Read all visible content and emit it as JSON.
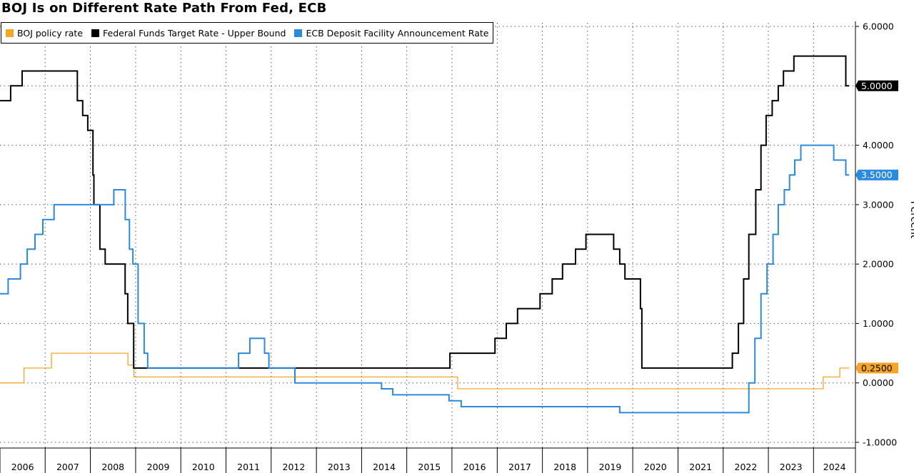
{
  "chart_data": {
    "type": "line",
    "title": "BOJ Is on Different Rate Path From Fed, ECB",
    "ylabel": "Percent",
    "xlabel": "",
    "ylim": [
      -1.0,
      6.0
    ],
    "xlim": [
      "2006-01-01",
      "2024-12-31"
    ],
    "grid": true,
    "legend_position": "top-left",
    "y_ticks": [
      "-1.0000",
      "0.0000",
      "1.0000",
      "2.0000",
      "3.0000",
      "4.0000",
      "5.0000",
      "6.0000"
    ],
    "x_ticks": [
      "2006",
      "2007",
      "2008",
      "2009",
      "2010",
      "2011",
      "2012",
      "2013",
      "2014",
      "2015",
      "2016",
      "2017",
      "2018",
      "2019",
      "2020",
      "2021",
      "2022",
      "2023",
      "2024"
    ],
    "series": [
      {
        "name": "BOJ policy rate",
        "color": "#f5a623",
        "last_value_label": "0.2500",
        "points": [
          [
            "2006-01-01",
            0.0
          ],
          [
            "2006-07-14",
            0.25
          ],
          [
            "2007-02-21",
            0.5
          ],
          [
            "2008-10-31",
            0.3
          ],
          [
            "2008-12-19",
            0.1
          ],
          [
            "2016-02-16",
            -0.1
          ],
          [
            "2024-03-19",
            0.1
          ],
          [
            "2024-07-31",
            0.25
          ],
          [
            "2024-10-15",
            0.25
          ]
        ]
      },
      {
        "name": "Federal Funds Target Rate - Upper Bound",
        "color": "#000000",
        "last_value_label": "5.0000",
        "points": [
          [
            "2006-01-01",
            4.75
          ],
          [
            "2006-03-28",
            5.0
          ],
          [
            "2006-05-10",
            5.0
          ],
          [
            "2006-06-29",
            5.25
          ],
          [
            "2007-09-18",
            4.75
          ],
          [
            "2007-10-31",
            4.5
          ],
          [
            "2007-12-11",
            4.25
          ],
          [
            "2008-01-22",
            3.5
          ],
          [
            "2008-01-30",
            3.0
          ],
          [
            "2008-03-18",
            2.25
          ],
          [
            "2008-04-30",
            2.0
          ],
          [
            "2008-10-08",
            1.5
          ],
          [
            "2008-10-29",
            1.0
          ],
          [
            "2008-12-16",
            0.25
          ],
          [
            "2015-12-16",
            0.5
          ],
          [
            "2016-12-14",
            0.75
          ],
          [
            "2017-03-15",
            1.0
          ],
          [
            "2017-06-14",
            1.25
          ],
          [
            "2017-12-13",
            1.5
          ],
          [
            "2018-03-21",
            1.75
          ],
          [
            "2018-06-13",
            2.0
          ],
          [
            "2018-09-26",
            2.25
          ],
          [
            "2018-12-19",
            2.5
          ],
          [
            "2019-07-31",
            2.25
          ],
          [
            "2019-09-18",
            2.0
          ],
          [
            "2019-10-30",
            1.75
          ],
          [
            "2020-03-03",
            1.25
          ],
          [
            "2020-03-15",
            0.25
          ],
          [
            "2022-03-16",
            0.5
          ],
          [
            "2022-05-04",
            1.0
          ],
          [
            "2022-06-15",
            1.75
          ],
          [
            "2022-07-27",
            2.5
          ],
          [
            "2022-09-21",
            3.25
          ],
          [
            "2022-11-02",
            4.0
          ],
          [
            "2022-12-14",
            4.5
          ],
          [
            "2023-02-01",
            4.75
          ],
          [
            "2023-03-22",
            5.0
          ],
          [
            "2023-05-03",
            5.25
          ],
          [
            "2023-07-26",
            5.5
          ],
          [
            "2024-09-18",
            5.0
          ],
          [
            "2024-10-15",
            5.0
          ]
        ]
      },
      {
        "name": "ECB Deposit Facility Announcement Rate",
        "color": "#2a8ae0",
        "last_value_label": "3.5000",
        "points": [
          [
            "2006-01-01",
            1.5
          ],
          [
            "2006-03-08",
            1.75
          ],
          [
            "2006-06-15",
            2.0
          ],
          [
            "2006-08-09",
            2.25
          ],
          [
            "2006-10-11",
            2.5
          ],
          [
            "2006-12-13",
            2.75
          ],
          [
            "2007-03-14",
            3.0
          ],
          [
            "2008-07-09",
            3.25
          ],
          [
            "2008-10-09",
            2.75
          ],
          [
            "2008-11-12",
            2.25
          ],
          [
            "2008-12-10",
            2.0
          ],
          [
            "2009-01-21",
            1.0
          ],
          [
            "2009-03-11",
            0.5
          ],
          [
            "2009-04-08",
            0.25
          ],
          [
            "2011-04-13",
            0.5
          ],
          [
            "2011-07-13",
            0.75
          ],
          [
            "2011-11-09",
            0.5
          ],
          [
            "2011-12-14",
            0.25
          ],
          [
            "2012-07-11",
            0.0
          ],
          [
            "2014-06-11",
            -0.1
          ],
          [
            "2014-09-10",
            -0.2
          ],
          [
            "2015-12-09",
            -0.3
          ],
          [
            "2016-03-16",
            -0.4
          ],
          [
            "2019-09-18",
            -0.5
          ],
          [
            "2022-07-27",
            0.0
          ],
          [
            "2022-09-14",
            0.75
          ],
          [
            "2022-11-02",
            1.5
          ],
          [
            "2022-12-21",
            2.0
          ],
          [
            "2023-02-08",
            2.5
          ],
          [
            "2023-03-22",
            3.0
          ],
          [
            "2023-05-10",
            3.25
          ],
          [
            "2023-06-21",
            3.5
          ],
          [
            "2023-08-02",
            3.75
          ],
          [
            "2023-09-20",
            4.0
          ],
          [
            "2024-06-12",
            3.75
          ],
          [
            "2024-09-18",
            3.5
          ],
          [
            "2024-10-15",
            3.5
          ]
        ]
      }
    ]
  }
}
